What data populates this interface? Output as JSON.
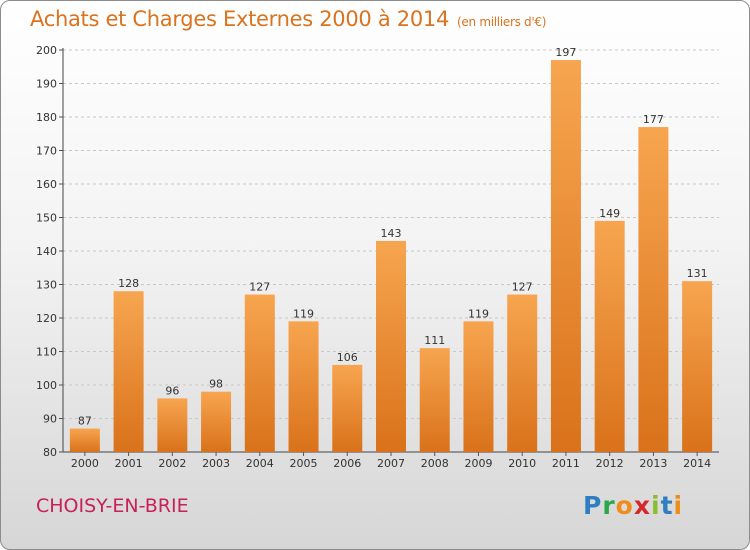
{
  "title": "Achats et Charges Externes 2000 à 2014",
  "subtitle": "(en milliers d'€)",
  "place": "CHOISY-EN-BRIE",
  "logo": {
    "letters": [
      "P",
      "r",
      "o",
      "x",
      "i",
      "t",
      "i"
    ],
    "colors": [
      "#2d7fc1",
      "#2aa84a",
      "#f08c1a",
      "#d6282c",
      "#8bbd2c",
      "#2d7fc1",
      "#f08c1a"
    ]
  },
  "colors": {
    "bar_top": "#f7a550",
    "bar_bottom": "#d9721a",
    "title": "#d9731f",
    "place": "#c8205a"
  },
  "chart_data": {
    "type": "bar",
    "categories": [
      "2000",
      "2001",
      "2002",
      "2003",
      "2004",
      "2005",
      "2006",
      "2007",
      "2008",
      "2009",
      "2010",
      "2011",
      "2012",
      "2013",
      "2014"
    ],
    "values": [
      87,
      128,
      96,
      98,
      127,
      119,
      106,
      143,
      111,
      119,
      127,
      197,
      149,
      177,
      131
    ],
    "ylim": [
      80,
      200
    ],
    "yticks": [
      80,
      90,
      100,
      110,
      120,
      130,
      140,
      150,
      160,
      170,
      180,
      190,
      200
    ],
    "grid": true
  }
}
